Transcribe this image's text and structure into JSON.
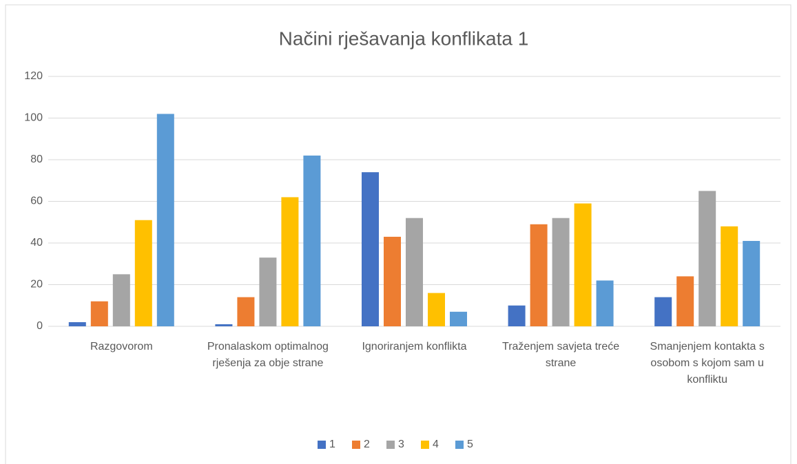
{
  "chart_data": {
    "type": "bar",
    "title": "Načini rješavanja konflikata 1",
    "categories": [
      "Razgovorom",
      "Pronalaskom optimalnog rješenja za obje strane",
      "Ignoriranjem konflikta",
      "Traženjem savjeta treće strane",
      "Smanjenjem kontakta s osobom s kojom sam u konfliktu"
    ],
    "series": [
      {
        "name": "1",
        "color": "#4472c4",
        "values": [
          2,
          1,
          74,
          10,
          14
        ]
      },
      {
        "name": "2",
        "color": "#ed7d31",
        "values": [
          12,
          14,
          43,
          49,
          24
        ]
      },
      {
        "name": "3",
        "color": "#a5a5a5",
        "values": [
          25,
          33,
          52,
          52,
          65
        ]
      },
      {
        "name": "4",
        "color": "#ffc000",
        "values": [
          51,
          62,
          16,
          59,
          48
        ]
      },
      {
        "name": "5",
        "color": "#5b9bd5",
        "values": [
          102,
          82,
          7,
          22,
          41
        ]
      }
    ],
    "ylim": [
      0,
      120
    ],
    "yticks": [
      0,
      20,
      40,
      60,
      80,
      100,
      120
    ],
    "grid": true,
    "legend": "bottom"
  }
}
